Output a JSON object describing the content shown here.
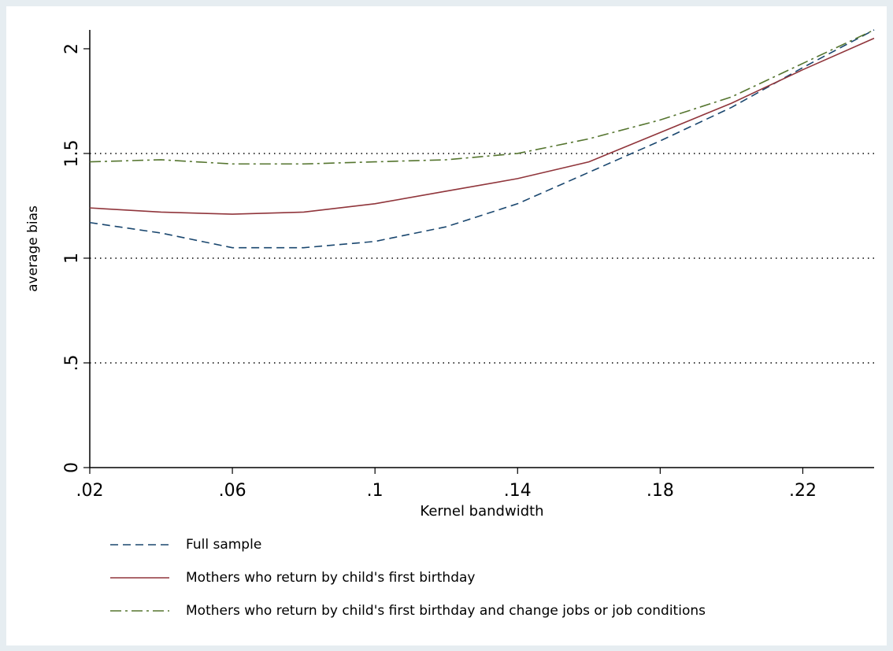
{
  "chart_data": {
    "type": "line",
    "xlabel": "Kernel bandwidth",
    "ylabel": "average bias",
    "x": [
      0.02,
      0.04,
      0.06,
      0.08,
      0.1,
      0.12,
      0.14,
      0.16,
      0.18,
      0.2,
      0.22,
      0.24
    ],
    "series": [
      {
        "name": "Full sample",
        "color": "#1a476f",
        "dash": "10,6",
        "values": [
          1.17,
          1.12,
          1.05,
          1.05,
          1.08,
          1.15,
          1.26,
          1.41,
          1.56,
          1.72,
          1.91,
          2.09
        ]
      },
      {
        "name": "Mothers who return by child's first birthday",
        "color": "#90353b",
        "dash": "none",
        "values": [
          1.24,
          1.22,
          1.21,
          1.22,
          1.26,
          1.32,
          1.38,
          1.46,
          1.6,
          1.74,
          1.9,
          2.05
        ]
      },
      {
        "name": "Mothers who return by child's first birthday and change jobs or job conditions",
        "color": "#55752f",
        "dash": "14,5,3,5",
        "values": [
          1.46,
          1.47,
          1.45,
          1.45,
          1.46,
          1.47,
          1.5,
          1.57,
          1.66,
          1.77,
          1.93,
          2.09
        ]
      }
    ],
    "xlim": [
      0.02,
      0.24
    ],
    "xticks": [
      {
        "value": 0.02,
        "label": ".02"
      },
      {
        "value": 0.06,
        "label": ".06"
      },
      {
        "value": 0.1,
        "label": ".1"
      },
      {
        "value": 0.14,
        "label": ".14"
      },
      {
        "value": 0.18,
        "label": ".18"
      },
      {
        "value": 0.22,
        "label": ".22"
      }
    ],
    "ylim": [
      0,
      2.09
    ],
    "yticks": [
      0,
      {
        "value": 0.5,
        "label": ".5"
      },
      1,
      1.5,
      2
    ],
    "grid": true,
    "legend": "bottom"
  }
}
